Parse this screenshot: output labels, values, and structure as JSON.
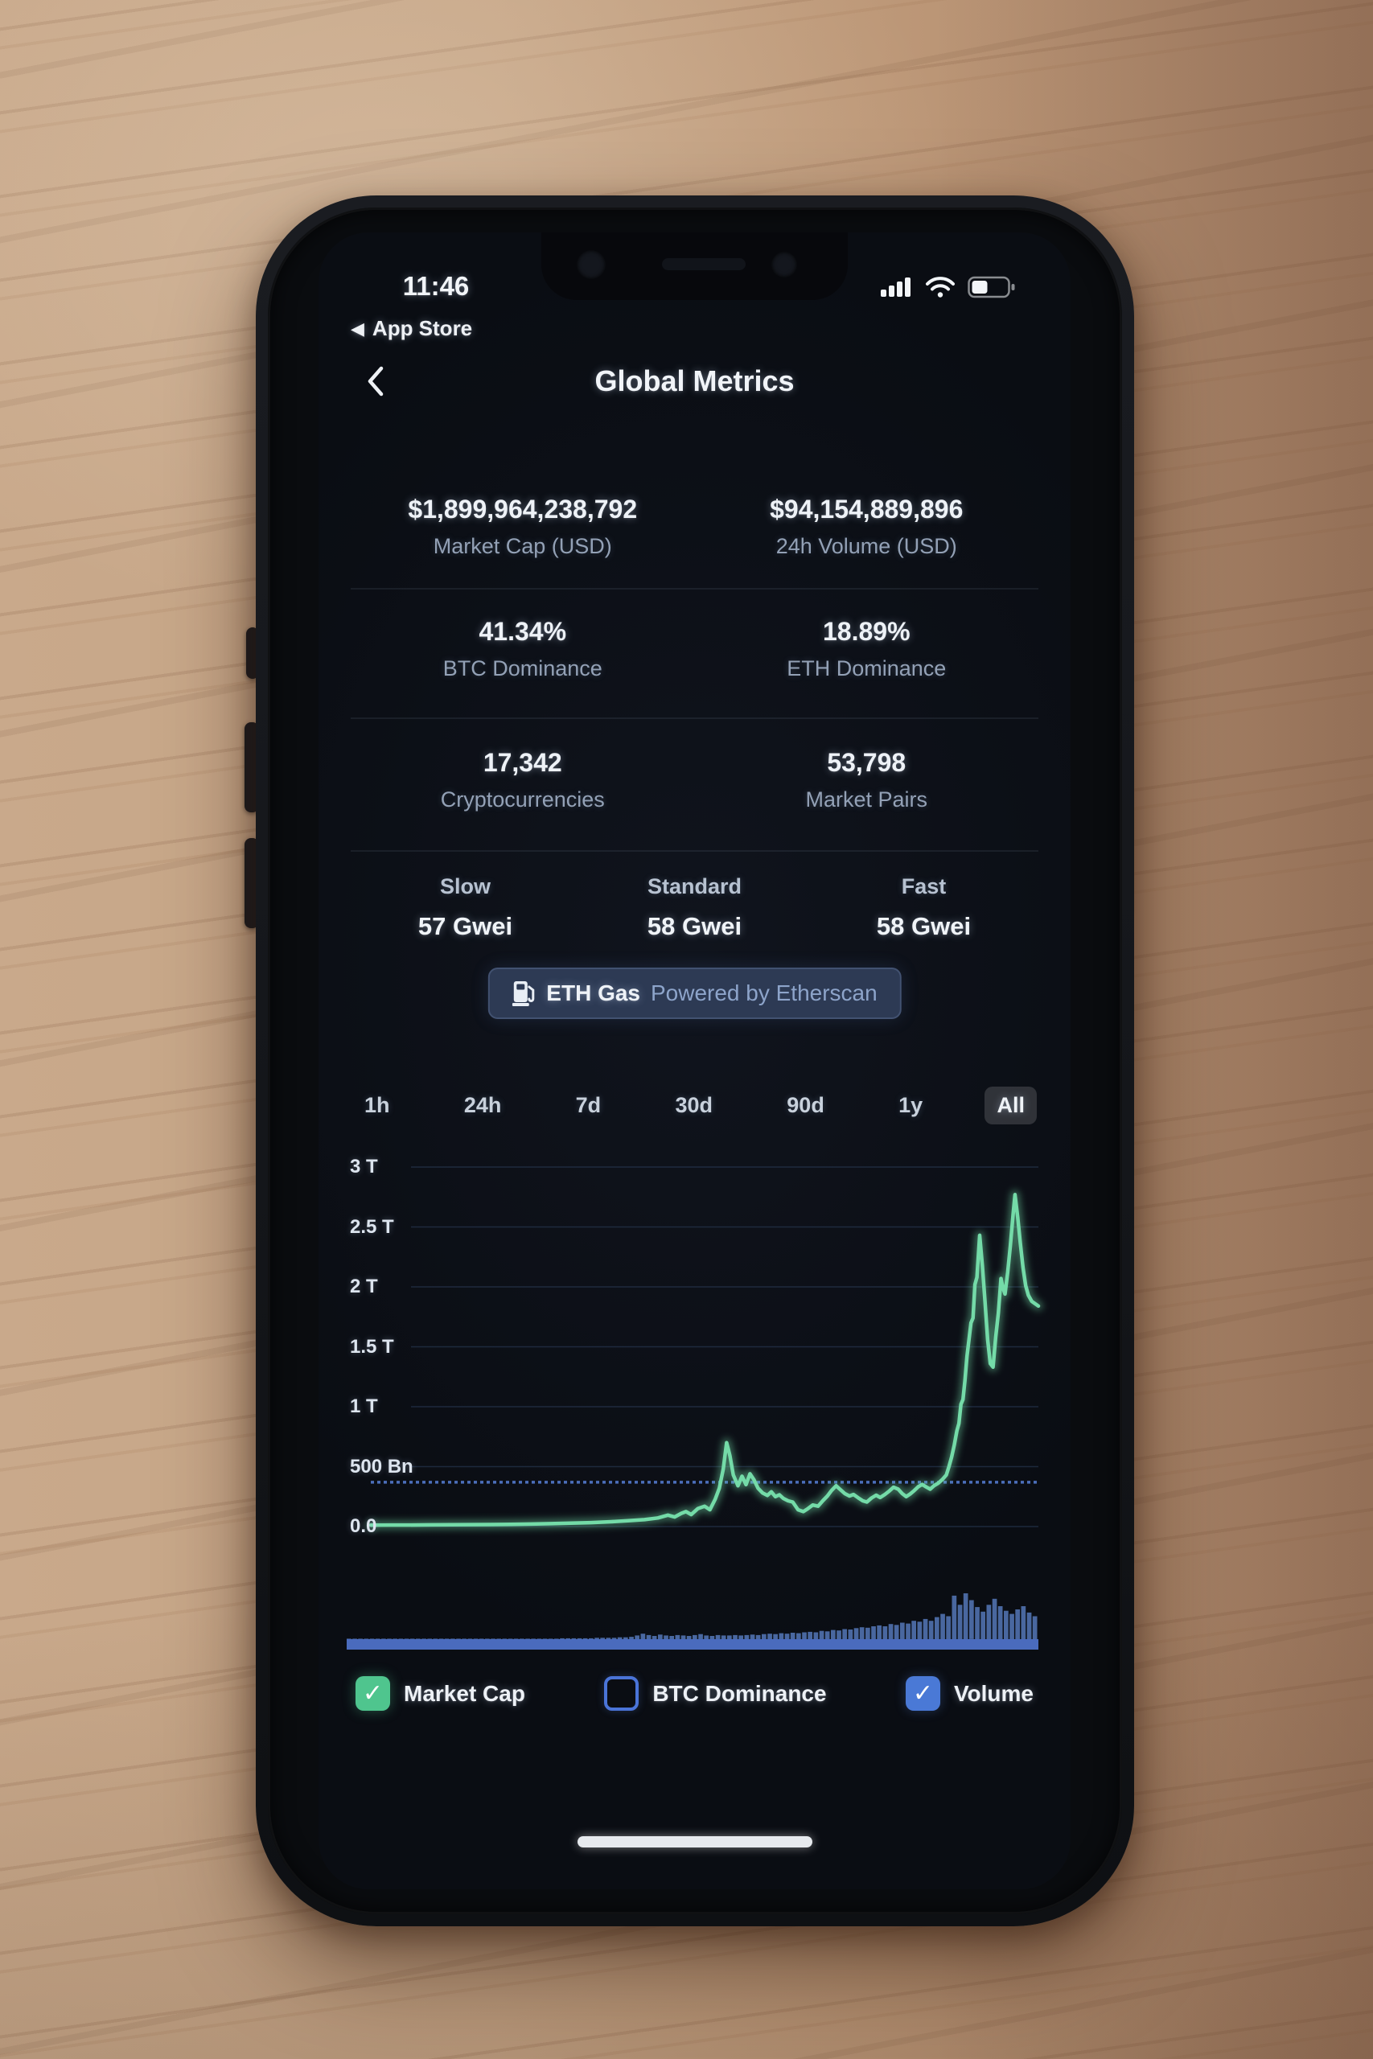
{
  "status_bar": {
    "time": "11:46",
    "back_glyph": "◀",
    "back_to_app": "App Store",
    "icons": [
      "cellular-signal-icon",
      "wifi-icon",
      "battery-icon"
    ]
  },
  "header": {
    "title": "Global Metrics",
    "back_icon": "chevron-left-icon"
  },
  "stats": {
    "rows": [
      [
        {
          "value": "$1,899,964,238,792",
          "label": "Market Cap (USD)"
        },
        {
          "value": "$94,154,889,896",
          "label": "24h Volume (USD)"
        }
      ],
      [
        {
          "value": "41.34%",
          "label": "BTC Dominance"
        },
        {
          "value": "18.89%",
          "label": "ETH Dominance"
        }
      ],
      [
        {
          "value": "17,342",
          "label": "Cryptocurrencies"
        },
        {
          "value": "53,798",
          "label": "Market Pairs"
        }
      ]
    ]
  },
  "gas": {
    "tiers": [
      {
        "label": "Slow",
        "value": "57 Gwei"
      },
      {
        "label": "Standard",
        "value": "58 Gwei"
      },
      {
        "label": "Fast",
        "value": "58 Gwei"
      }
    ],
    "badge": {
      "icon": "fuel-pump-icon",
      "title": "ETH Gas",
      "subtitle": "Powered by Etherscan"
    }
  },
  "time_ranges": {
    "options": [
      {
        "label": "1h",
        "selected": false
      },
      {
        "label": "24h",
        "selected": false
      },
      {
        "label": "7d",
        "selected": false
      },
      {
        "label": "30d",
        "selected": false
      },
      {
        "label": "90d",
        "selected": false
      },
      {
        "label": "1y",
        "selected": false
      },
      {
        "label": "All",
        "selected": true
      }
    ]
  },
  "chart_data": {
    "type": "line+bar",
    "title": "",
    "xlabel": "",
    "ylabel": "",
    "x_axis_labels_visible": false,
    "selected_range": "All",
    "ylim_bn": [
      0,
      3200
    ],
    "y_ticks": [
      {
        "label": "3 T",
        "value_bn": 3000
      },
      {
        "label": "2.5 T",
        "value_bn": 2500
      },
      {
        "label": "2 T",
        "value_bn": 2000
      },
      {
        "label": "1.5 T",
        "value_bn": 1500
      },
      {
        "label": "1 T",
        "value_bn": 1000
      },
      {
        "label": "500 Bn",
        "value_bn": 500
      },
      {
        "label": "0.0",
        "value_bn": 0
      }
    ],
    "grid": true,
    "reference_line_bn": 370,
    "series": [
      {
        "name": "Market Cap",
        "type": "line",
        "color": "#74dba8",
        "unit": "USD billions",
        "points": [
          [
            0,
            12
          ],
          [
            0.03,
            13
          ],
          [
            0.06,
            13
          ],
          [
            0.09,
            14
          ],
          [
            0.12,
            15
          ],
          [
            0.15,
            16
          ],
          [
            0.18,
            17
          ],
          [
            0.21,
            19
          ],
          [
            0.24,
            21
          ],
          [
            0.27,
            24
          ],
          [
            0.3,
            28
          ],
          [
            0.33,
            33
          ],
          [
            0.36,
            40
          ],
          [
            0.385,
            48
          ],
          [
            0.41,
            58
          ],
          [
            0.43,
            72
          ],
          [
            0.445,
            95
          ],
          [
            0.455,
            80
          ],
          [
            0.465,
            110
          ],
          [
            0.472,
            125
          ],
          [
            0.48,
            100
          ],
          [
            0.49,
            150
          ],
          [
            0.5,
            170
          ],
          [
            0.508,
            140
          ],
          [
            0.516,
            230
          ],
          [
            0.522,
            320
          ],
          [
            0.528,
            480
          ],
          [
            0.533,
            700
          ],
          [
            0.538,
            590
          ],
          [
            0.543,
            430
          ],
          [
            0.55,
            340
          ],
          [
            0.556,
            420
          ],
          [
            0.562,
            350
          ],
          [
            0.568,
            440
          ],
          [
            0.574,
            390
          ],
          [
            0.58,
            320
          ],
          [
            0.587,
            280
          ],
          [
            0.594,
            260
          ],
          [
            0.6,
            290
          ],
          [
            0.606,
            250
          ],
          [
            0.612,
            265
          ],
          [
            0.618,
            235
          ],
          [
            0.625,
            215
          ],
          [
            0.632,
            205
          ],
          [
            0.64,
            140
          ],
          [
            0.648,
            125
          ],
          [
            0.655,
            150
          ],
          [
            0.662,
            180
          ],
          [
            0.67,
            170
          ],
          [
            0.677,
            215
          ],
          [
            0.684,
            255
          ],
          [
            0.69,
            300
          ],
          [
            0.697,
            340
          ],
          [
            0.703,
            310
          ],
          [
            0.71,
            275
          ],
          [
            0.717,
            255
          ],
          [
            0.723,
            268
          ],
          [
            0.73,
            240
          ],
          [
            0.737,
            215
          ],
          [
            0.743,
            205
          ],
          [
            0.75,
            238
          ],
          [
            0.757,
            262
          ],
          [
            0.763,
            242
          ],
          [
            0.77,
            268
          ],
          [
            0.777,
            298
          ],
          [
            0.783,
            328
          ],
          [
            0.79,
            312
          ],
          [
            0.796,
            275
          ],
          [
            0.802,
            250
          ],
          [
            0.808,
            272
          ],
          [
            0.814,
            300
          ],
          [
            0.82,
            332
          ],
          [
            0.826,
            352
          ],
          [
            0.832,
            330
          ],
          [
            0.838,
            312
          ],
          [
            0.844,
            342
          ],
          [
            0.85,
            362
          ],
          [
            0.856,
            392
          ],
          [
            0.862,
            430
          ],
          [
            0.866,
            500
          ],
          [
            0.87,
            580
          ],
          [
            0.874,
            680
          ],
          [
            0.878,
            800
          ],
          [
            0.881,
            860
          ],
          [
            0.884,
            1020
          ],
          [
            0.887,
            1060
          ],
          [
            0.89,
            1220
          ],
          [
            0.893,
            1420
          ],
          [
            0.896,
            1560
          ],
          [
            0.899,
            1700
          ],
          [
            0.902,
            1740
          ],
          [
            0.905,
            2020
          ],
          [
            0.908,
            2080
          ],
          [
            0.912,
            2430
          ],
          [
            0.916,
            2180
          ],
          [
            0.92,
            1880
          ],
          [
            0.924,
            1560
          ],
          [
            0.928,
            1360
          ],
          [
            0.932,
            1330
          ],
          [
            0.936,
            1580
          ],
          [
            0.94,
            1780
          ],
          [
            0.944,
            2070
          ],
          [
            0.947,
            1990
          ],
          [
            0.95,
            1940
          ],
          [
            0.954,
            2120
          ],
          [
            0.958,
            2340
          ],
          [
            0.962,
            2600
          ],
          [
            0.965,
            2770
          ],
          [
            0.969,
            2580
          ],
          [
            0.973,
            2360
          ],
          [
            0.977,
            2160
          ],
          [
            0.981,
            2010
          ],
          [
            0.985,
            1930
          ],
          [
            0.99,
            1880
          ],
          [
            1,
            1840
          ]
        ]
      },
      {
        "name": "Volume",
        "type": "bar",
        "color": "#5578b8",
        "unit": "relative 0-100",
        "values": [
          1,
          1,
          1,
          1,
          1,
          1,
          1,
          1,
          1,
          1,
          1,
          1,
          1,
          1,
          1,
          1,
          1,
          1,
          1,
          1,
          1,
          1,
          1,
          1,
          1,
          1,
          1,
          1,
          1,
          1,
          1,
          1,
          1,
          1,
          1,
          1,
          1,
          2,
          2,
          2,
          2,
          2,
          2,
          3,
          3,
          3,
          3,
          4,
          4,
          5,
          8,
          12,
          9,
          7,
          10,
          8,
          7,
          9,
          8,
          7,
          9,
          11,
          8,
          7,
          9,
          8,
          8,
          9,
          8,
          9,
          10,
          9,
          11,
          12,
          11,
          13,
          12,
          14,
          13,
          15,
          16,
          15,
          18,
          17,
          20,
          19,
          22,
          21,
          24,
          26,
          25,
          28,
          30,
          28,
          33,
          31,
          36,
          34,
          40,
          38,
          44,
          40,
          48,
          55,
          50,
          95,
          75,
          100,
          85,
          70,
          60,
          75,
          88,
          72,
          62,
          55,
          65,
          72,
          58,
          50
        ]
      }
    ],
    "legend_position": "bottom"
  },
  "legend": {
    "items": [
      {
        "label": "Market Cap",
        "checked": true,
        "check_glyph": "✓",
        "color": "#4fc58e"
      },
      {
        "label": "BTC Dominance",
        "checked": false,
        "check_glyph": "",
        "color": "#4a74d8"
      },
      {
        "label": "Volume",
        "checked": true,
        "check_glyph": "✓",
        "color": "#4a79d6"
      }
    ]
  },
  "colors": {
    "screen_bg": "#0a0d13",
    "accent_green": "#74dba8",
    "accent_blue": "#4a79d6",
    "badge_bg": "#2d3a54",
    "gridline": "#2a3c58",
    "secondary_text": "#93a1b6"
  }
}
